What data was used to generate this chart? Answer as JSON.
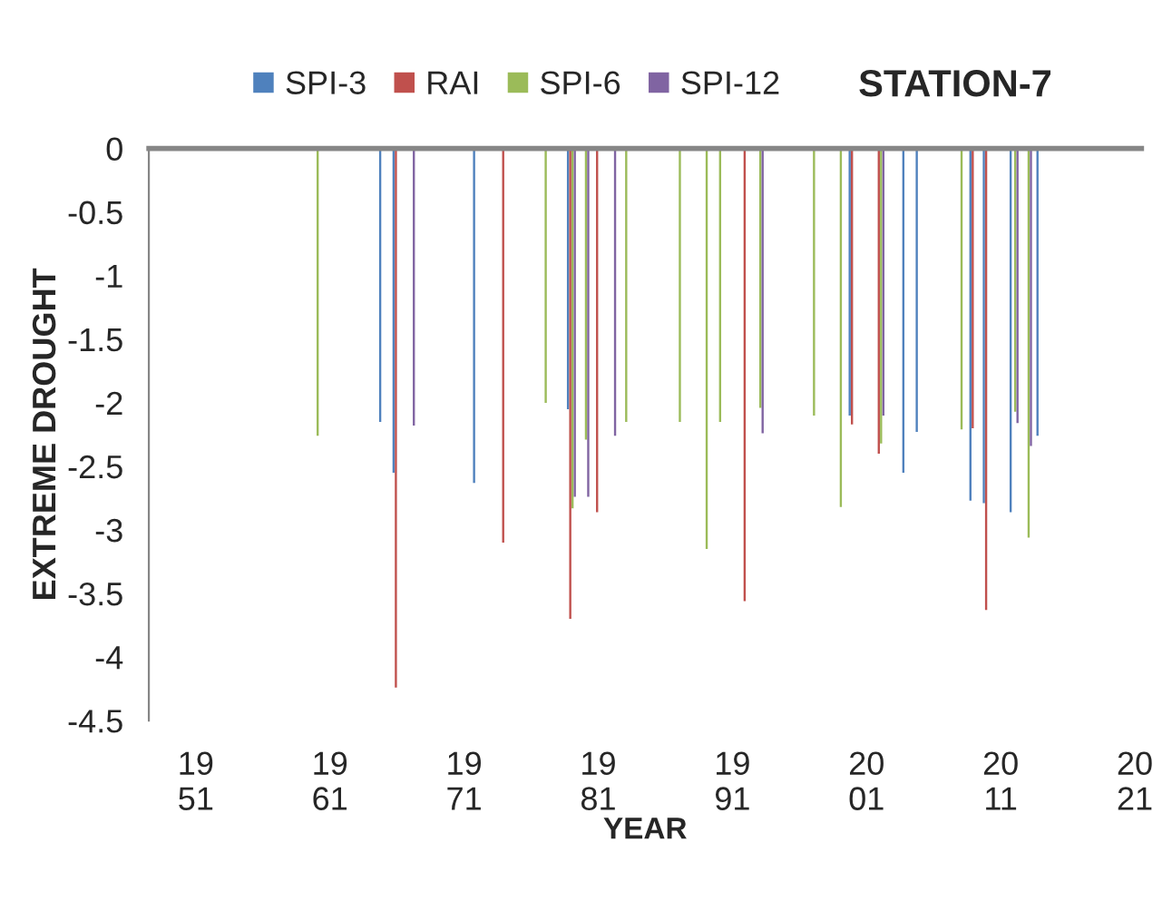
{
  "chart_data": {
    "type": "bar",
    "title": "STATION-7",
    "xlabel": "YEAR",
    "ylabel": "EXTREME DROUGHT",
    "categories": [
      null,
      null,
      null,
      "19\n51",
      null,
      null,
      null,
      null,
      null,
      null,
      null,
      null,
      null,
      "19\n61",
      null,
      null,
      null,
      null,
      null,
      null,
      null,
      null,
      null,
      "19\n71",
      null,
      null,
      null,
      null,
      null,
      null,
      null,
      null,
      null,
      "19\n81",
      null,
      null,
      null,
      null,
      null,
      null,
      null,
      null,
      null,
      "19\n91",
      null,
      null,
      null,
      null,
      null,
      null,
      null,
      null,
      null,
      "20\n01",
      null,
      null,
      null,
      null,
      null,
      null,
      null,
      null,
      null,
      "20\n11",
      null,
      null,
      null,
      null,
      null,
      null,
      null,
      null,
      null,
      "20\n21"
    ],
    "ylim": [
      -4.5,
      0
    ],
    "yticks": [
      0,
      -0.5,
      -1,
      -1.5,
      -2,
      -2.5,
      -3,
      -3.5,
      -4,
      -4.5
    ],
    "grid": false,
    "legend": "top",
    "series": [
      {
        "name": "SPI-3",
        "color": "#4f81bd",
        "values": [
          null,
          null,
          null,
          null,
          null,
          null,
          null,
          null,
          null,
          null,
          null,
          null,
          null,
          null,
          null,
          null,
          null,
          -2.15,
          -2.55,
          null,
          null,
          null,
          null,
          null,
          -2.63,
          null,
          null,
          null,
          null,
          null,
          null,
          -2.05,
          null,
          null,
          null,
          null,
          null,
          null,
          null,
          null,
          null,
          null,
          null,
          null,
          null,
          null,
          null,
          null,
          null,
          null,
          null,
          null,
          -2.1,
          null,
          null,
          null,
          -2.55,
          -2.23,
          null,
          null,
          null,
          -2.77,
          -2.79,
          null,
          -2.86,
          null,
          -2.26,
          null,
          null,
          null,
          null,
          null,
          null,
          null
        ]
      },
      {
        "name": "RAI",
        "color": "#c0504d",
        "values": [
          null,
          null,
          null,
          null,
          null,
          null,
          null,
          null,
          null,
          null,
          null,
          null,
          null,
          null,
          null,
          null,
          null,
          null,
          -4.24,
          null,
          null,
          null,
          null,
          null,
          null,
          null,
          -3.1,
          null,
          null,
          null,
          null,
          -3.7,
          null,
          -2.86,
          null,
          null,
          null,
          null,
          null,
          null,
          null,
          null,
          null,
          null,
          -3.56,
          null,
          null,
          null,
          null,
          null,
          null,
          null,
          -2.17,
          null,
          -2.4,
          null,
          null,
          null,
          null,
          null,
          null,
          -2.2,
          -3.63,
          null,
          null,
          null,
          null,
          null,
          null,
          null,
          null,
          null,
          null,
          null
        ]
      },
      {
        "name": "SPI-6",
        "color": "#9bbb59",
        "values": [
          null,
          null,
          null,
          null,
          null,
          null,
          null,
          null,
          null,
          null,
          null,
          null,
          -2.26,
          null,
          null,
          null,
          null,
          null,
          null,
          null,
          null,
          null,
          null,
          null,
          null,
          null,
          null,
          null,
          null,
          -2.0,
          null,
          -2.83,
          -2.29,
          null,
          null,
          -2.15,
          null,
          null,
          null,
          -2.15,
          null,
          -3.15,
          -2.15,
          null,
          null,
          -2.04,
          null,
          null,
          null,
          -2.1,
          null,
          -2.82,
          null,
          null,
          -2.32,
          null,
          null,
          null,
          null,
          null,
          -2.21,
          null,
          null,
          null,
          -2.07,
          -3.06,
          null,
          null,
          null,
          null,
          null,
          null,
          null,
          null
        ]
      },
      {
        "name": "SPI-12",
        "color": "#8064a2",
        "values": [
          null,
          null,
          null,
          null,
          null,
          null,
          null,
          null,
          null,
          null,
          null,
          null,
          null,
          null,
          null,
          null,
          null,
          null,
          null,
          -2.18,
          null,
          null,
          null,
          null,
          null,
          null,
          null,
          null,
          null,
          null,
          null,
          -2.74,
          -2.74,
          null,
          -2.26,
          null,
          null,
          null,
          null,
          null,
          null,
          null,
          null,
          null,
          null,
          -2.24,
          null,
          null,
          null,
          null,
          null,
          null,
          null,
          null,
          -2.1,
          null,
          null,
          null,
          null,
          null,
          null,
          null,
          null,
          null,
          -2.16,
          -2.34,
          null,
          null,
          null,
          null,
          null,
          null,
          null,
          null
        ]
      }
    ]
  }
}
